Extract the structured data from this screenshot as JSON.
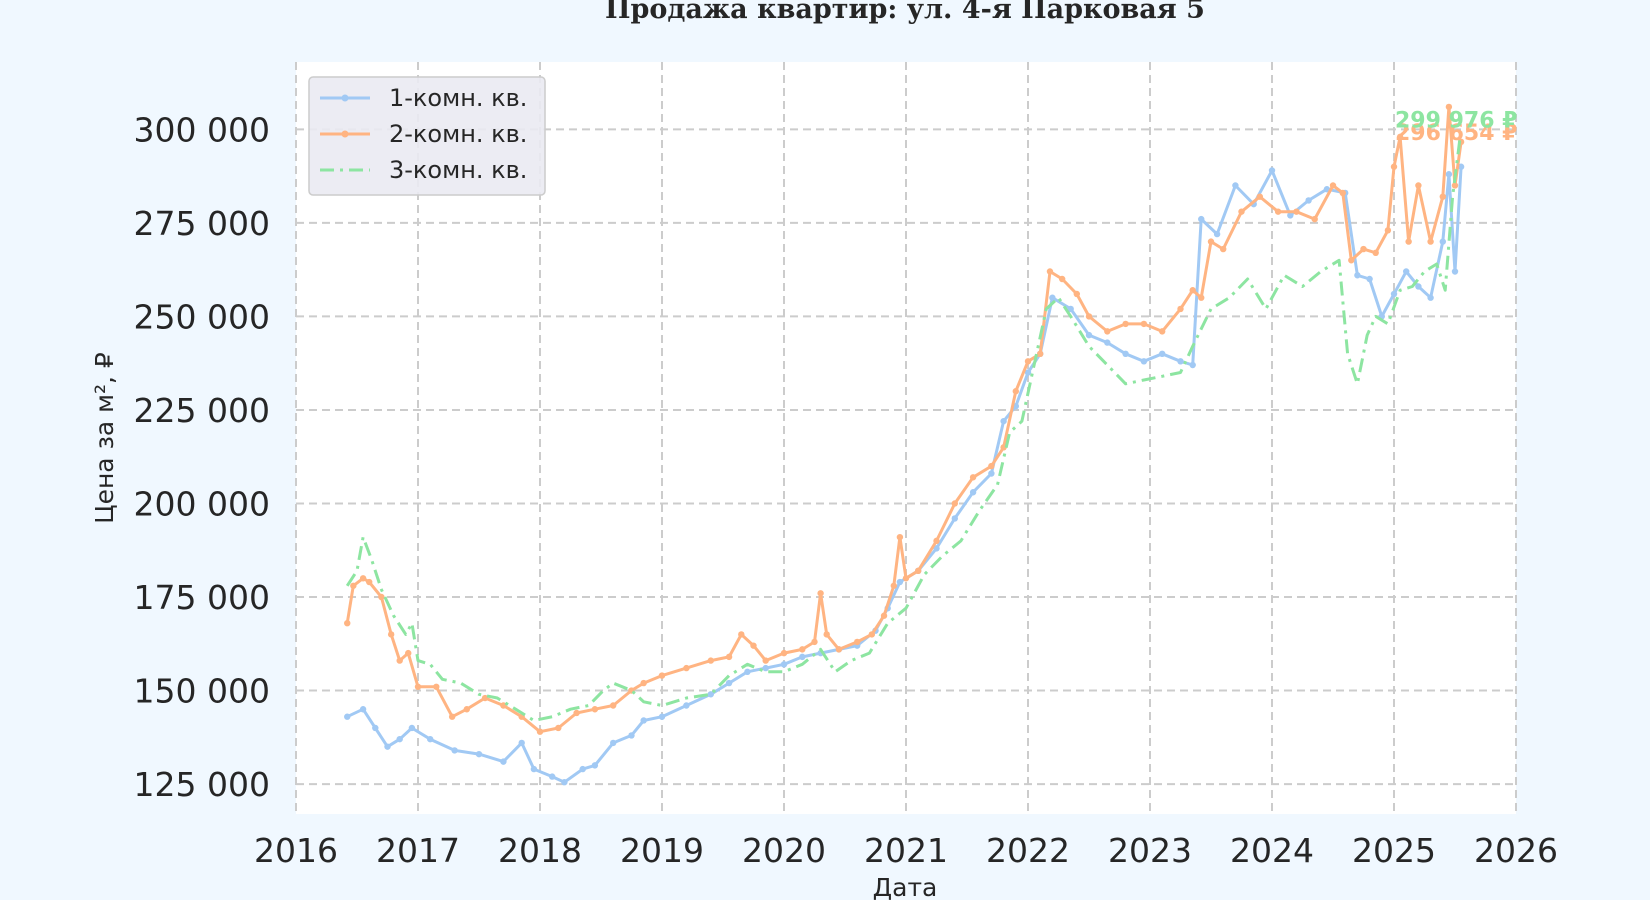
{
  "chart_data": {
    "type": "line",
    "title": "Продажа квартир: ул. 4-я Парковая 5",
    "xlabel": "Дата",
    "ylabel": "Цена за м², ₽",
    "xlim": [
      2016.0,
      2026.0
    ],
    "ylim": [
      117000,
      318000
    ],
    "x_ticks": [
      2016,
      2017,
      2018,
      2019,
      2020,
      2021,
      2022,
      2023,
      2024,
      2025,
      2026
    ],
    "x_tick_labels": [
      "2016",
      "2017",
      "2018",
      "2019",
      "2020",
      "2021",
      "2022",
      "2023",
      "2024",
      "2025",
      "2026"
    ],
    "y_ticks": [
      125000,
      150000,
      175000,
      200000,
      225000,
      250000,
      275000,
      300000
    ],
    "y_tick_labels": [
      "125 000",
      "150 000",
      "175 000",
      "200 000",
      "225 000",
      "250 000",
      "275 000",
      "300 000"
    ],
    "grid": true,
    "legend_position": "top-left",
    "series": [
      {
        "name": "1-комн. кв.",
        "color": "#a1c9f4",
        "style": "solid-dot",
        "end_label": "",
        "x": [
          2016.42,
          2016.55,
          2016.65,
          2016.75,
          2016.85,
          2016.95,
          2017.1,
          2017.3,
          2017.5,
          2017.7,
          2017.85,
          2017.95,
          2018.1,
          2018.2,
          2018.35,
          2018.45,
          2018.6,
          2018.75,
          2018.85,
          2019.0,
          2019.2,
          2019.4,
          2019.55,
          2019.7,
          2019.85,
          2020.0,
          2020.15,
          2020.3,
          2020.45,
          2020.6,
          2020.75,
          2020.85,
          2020.95,
          2021.1,
          2021.25,
          2021.4,
          2021.55,
          2021.7,
          2021.8,
          2021.9,
          2022.0,
          2022.1,
          2022.2,
          2022.35,
          2022.5,
          2022.65,
          2022.8,
          2022.95,
          2023.1,
          2023.25,
          2023.35,
          2023.42,
          2023.55,
          2023.7,
          2023.85,
          2024.0,
          2024.15,
          2024.3,
          2024.45,
          2024.6,
          2024.7,
          2024.8,
          2024.9,
          2025.0,
          2025.1,
          2025.2,
          2025.3,
          2025.4,
          2025.45,
          2025.5,
          2025.55
        ],
        "y": [
          143000,
          145000,
          140000,
          135000,
          137000,
          140000,
          137000,
          134000,
          133000,
          131000,
          136000,
          129000,
          127000,
          125500,
          129000,
          130000,
          136000,
          138000,
          142000,
          143000,
          146000,
          149000,
          152000,
          155000,
          156000,
          157000,
          159000,
          160000,
          161000,
          162000,
          166000,
          172000,
          179000,
          182000,
          188000,
          196000,
          203000,
          208000,
          222000,
          226000,
          235000,
          240000,
          255000,
          252000,
          245000,
          243000,
          240000,
          238000,
          240000,
          238000,
          237000,
          276000,
          272000,
          285000,
          280000,
          289000,
          277000,
          281000,
          284000,
          283000,
          261000,
          260000,
          250000,
          256000,
          262000,
          258000,
          255000,
          270000,
          288000,
          262000,
          290000
        ]
      },
      {
        "name": "2-комн. кв.",
        "color": "#ffb482",
        "style": "solid-dot",
        "end_label": "296 654 ₽",
        "x": [
          2016.42,
          2016.47,
          2016.55,
          2016.6,
          2016.7,
          2016.78,
          2016.85,
          2016.92,
          2017.0,
          2017.15,
          2017.28,
          2017.4,
          2017.55,
          2017.7,
          2017.85,
          2018.0,
          2018.15,
          2018.3,
          2018.45,
          2018.6,
          2018.75,
          2018.85,
          2019.0,
          2019.2,
          2019.4,
          2019.55,
          2019.65,
          2019.75,
          2019.85,
          2020.0,
          2020.15,
          2020.25,
          2020.3,
          2020.35,
          2020.45,
          2020.6,
          2020.72,
          2020.82,
          2020.9,
          2020.95,
          2021.0,
          2021.1,
          2021.25,
          2021.4,
          2021.55,
          2021.7,
          2021.8,
          2021.9,
          2022.0,
          2022.1,
          2022.18,
          2022.28,
          2022.4,
          2022.5,
          2022.65,
          2022.8,
          2022.95,
          2023.1,
          2023.25,
          2023.35,
          2023.42,
          2023.5,
          2023.6,
          2023.75,
          2023.9,
          2024.05,
          2024.2,
          2024.35,
          2024.5,
          2024.58,
          2024.65,
          2024.75,
          2024.85,
          2024.95,
          2025.0,
          2025.05,
          2025.12,
          2025.2,
          2025.3,
          2025.4,
          2025.45,
          2025.5,
          2025.55
        ],
        "y": [
          168000,
          178000,
          180000,
          179000,
          175000,
          165000,
          158000,
          160000,
          151000,
          151000,
          143000,
          145000,
          148000,
          146000,
          143000,
          139000,
          140000,
          144000,
          145000,
          146000,
          150000,
          152000,
          154000,
          156000,
          158000,
          159000,
          165000,
          162000,
          158000,
          160000,
          161000,
          163000,
          176000,
          165000,
          161000,
          163000,
          165000,
          170000,
          178000,
          191000,
          180000,
          182000,
          190000,
          200000,
          207000,
          210000,
          215000,
          230000,
          238000,
          240000,
          262000,
          260000,
          256000,
          250000,
          246000,
          248000,
          248000,
          246000,
          252000,
          257000,
          255000,
          270000,
          268000,
          278000,
          282000,
          278000,
          278000,
          276000,
          285000,
          283000,
          265000,
          268000,
          267000,
          273000,
          290000,
          298000,
          270000,
          285000,
          270000,
          282000,
          306000,
          285000,
          296654
        ]
      },
      {
        "name": "3-комн. кв.",
        "color": "#8de5a1",
        "style": "dash-dot",
        "end_label": "299 976 ₽",
        "x": [
          2016.42,
          2016.5,
          2016.55,
          2016.62,
          2016.7,
          2016.8,
          2016.9,
          2016.95,
          2017.0,
          2017.1,
          2017.2,
          2017.35,
          2017.5,
          2017.65,
          2017.8,
          2017.95,
          2018.1,
          2018.25,
          2018.4,
          2018.52,
          2018.6,
          2018.75,
          2018.85,
          2019.0,
          2019.2,
          2019.4,
          2019.55,
          2019.7,
          2019.85,
          2020.0,
          2020.15,
          2020.3,
          2020.42,
          2020.55,
          2020.7,
          2020.85,
          2021.0,
          2021.15,
          2021.3,
          2021.45,
          2021.6,
          2021.75,
          2021.85,
          2021.95,
          2022.05,
          2022.15,
          2022.25,
          2022.35,
          2022.5,
          2022.65,
          2022.8,
          2022.95,
          2023.1,
          2023.25,
          2023.35,
          2023.5,
          2023.65,
          2023.8,
          2023.95,
          2024.1,
          2024.25,
          2024.4,
          2024.55,
          2024.62,
          2024.7,
          2024.78,
          2024.85,
          2024.95,
          2025.05,
          2025.15,
          2025.25,
          2025.35,
          2025.42,
          2025.48,
          2025.55
        ],
        "y": [
          178000,
          182000,
          191000,
          185000,
          177000,
          170000,
          165000,
          168000,
          158000,
          157000,
          153000,
          152000,
          149000,
          148000,
          145000,
          142000,
          143000,
          145000,
          146000,
          150000,
          152000,
          150000,
          147000,
          146000,
          148000,
          149000,
          154000,
          157000,
          155000,
          155000,
          157000,
          161000,
          155000,
          158000,
          160000,
          168000,
          172000,
          181000,
          186000,
          190000,
          198000,
          205000,
          219000,
          222000,
          237000,
          252000,
          255000,
          250000,
          242000,
          237000,
          232000,
          233000,
          234000,
          235000,
          242000,
          252000,
          255000,
          260000,
          252000,
          261000,
          258000,
          262000,
          265000,
          240000,
          232000,
          245000,
          250000,
          248000,
          257000,
          258000,
          262000,
          264000,
          257000,
          282000,
          299976
        ]
      }
    ]
  }
}
